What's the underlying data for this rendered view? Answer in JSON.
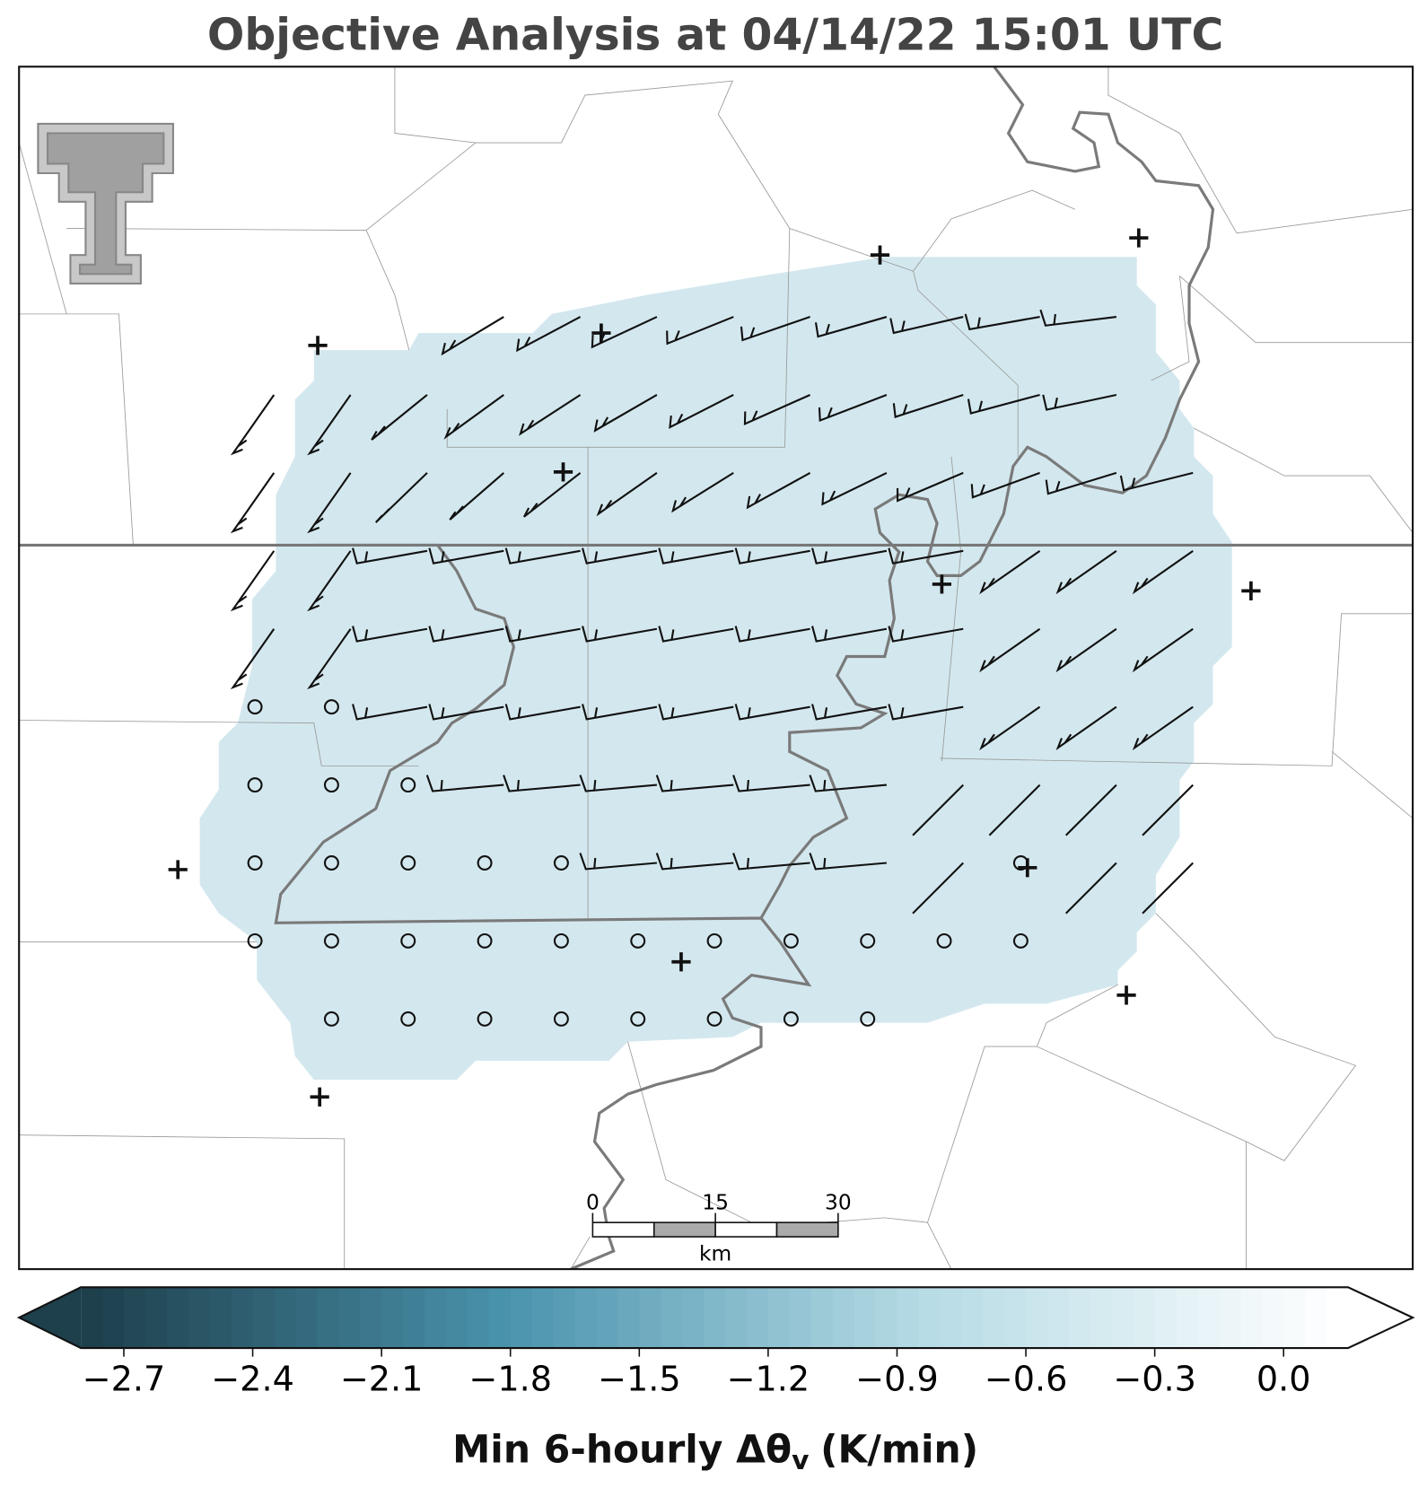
{
  "chart_data": {
    "type": "map",
    "title": "Objective Analysis at 04/14/22 15:01 UTC",
    "colorbar": {
      "label": "Min 6-hourly Δθ",
      "label_subscript": "v",
      "label_units": "(K/min)",
      "clim": [
        -2.8,
        0.15
      ],
      "ticks": [
        {
          "value": -2.7,
          "label": "−2.7"
        },
        {
          "value": -2.4,
          "label": "−2.4"
        },
        {
          "value": -2.1,
          "label": "−2.1"
        },
        {
          "value": -1.8,
          "label": "−1.8"
        },
        {
          "value": -1.5,
          "label": "−1.5"
        },
        {
          "value": -1.2,
          "label": "−1.2"
        },
        {
          "value": -0.9,
          "label": "−0.9"
        },
        {
          "value": -0.6,
          "label": "−0.6"
        },
        {
          "value": -0.3,
          "label": "−0.3"
        },
        {
          "value": 0.0,
          "label": "0.0"
        }
      ],
      "colormap": [
        "#1e3f4c",
        "#4a93ad",
        "#b6dbe5",
        "#ffffff"
      ]
    },
    "scale_bar": {
      "ticks": [
        0,
        15,
        30
      ],
      "units": "km"
    }
  }
}
